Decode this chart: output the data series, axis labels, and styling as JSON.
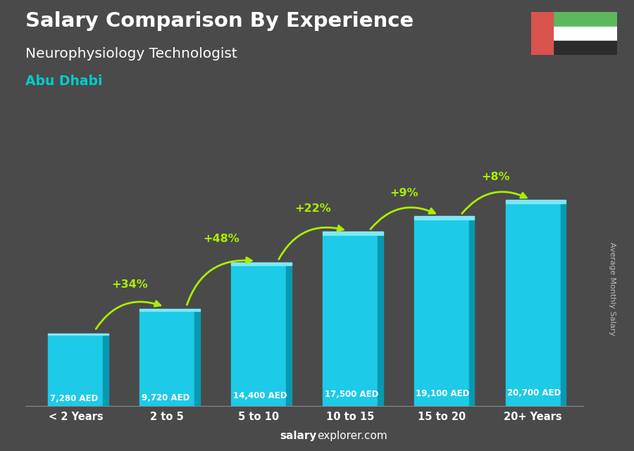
{
  "title_line1": "Salary Comparison By Experience",
  "title_line2": "Neurophysiology Technologist",
  "title_line3": "Abu Dhabi",
  "categories": [
    "< 2 Years",
    "2 to 5",
    "5 to 10",
    "10 to 15",
    "15 to 20",
    "20+ Years"
  ],
  "values": [
    7280,
    9720,
    14400,
    17500,
    19100,
    20700
  ],
  "pct_changes": [
    "+34%",
    "+48%",
    "+22%",
    "+9%",
    "+8%"
  ],
  "bar_color_main": "#1DCAE8",
  "bar_color_dark": "#0899B2",
  "bar_color_light": "#7DE8F8",
  "background_color": "#4A4A4A",
  "title_color": "#FFFFFF",
  "subtitle_color": "#FFFFFF",
  "location_color": "#00CCCC",
  "value_label_color": "#FFFFFF",
  "pct_color": "#AAEE00",
  "arrow_color": "#AAEE00",
  "footer_salary": "salary",
  "footer_explorer": "explorer",
  "footer_com": ".com",
  "ylabel": "Average Monthly Salary",
  "ylim_max": 24000,
  "bar_width": 0.6,
  "arrow_pairs": [
    [
      0,
      1,
      "+34%"
    ],
    [
      1,
      2,
      "+48%"
    ],
    [
      2,
      3,
      "+22%"
    ],
    [
      3,
      4,
      "+9%"
    ],
    [
      4,
      5,
      "+8%"
    ]
  ],
  "flag_green": "#5CB85C",
  "flag_white": "#FFFFFF",
  "flag_black": "#2C2C2C",
  "flag_red": "#D9534F"
}
